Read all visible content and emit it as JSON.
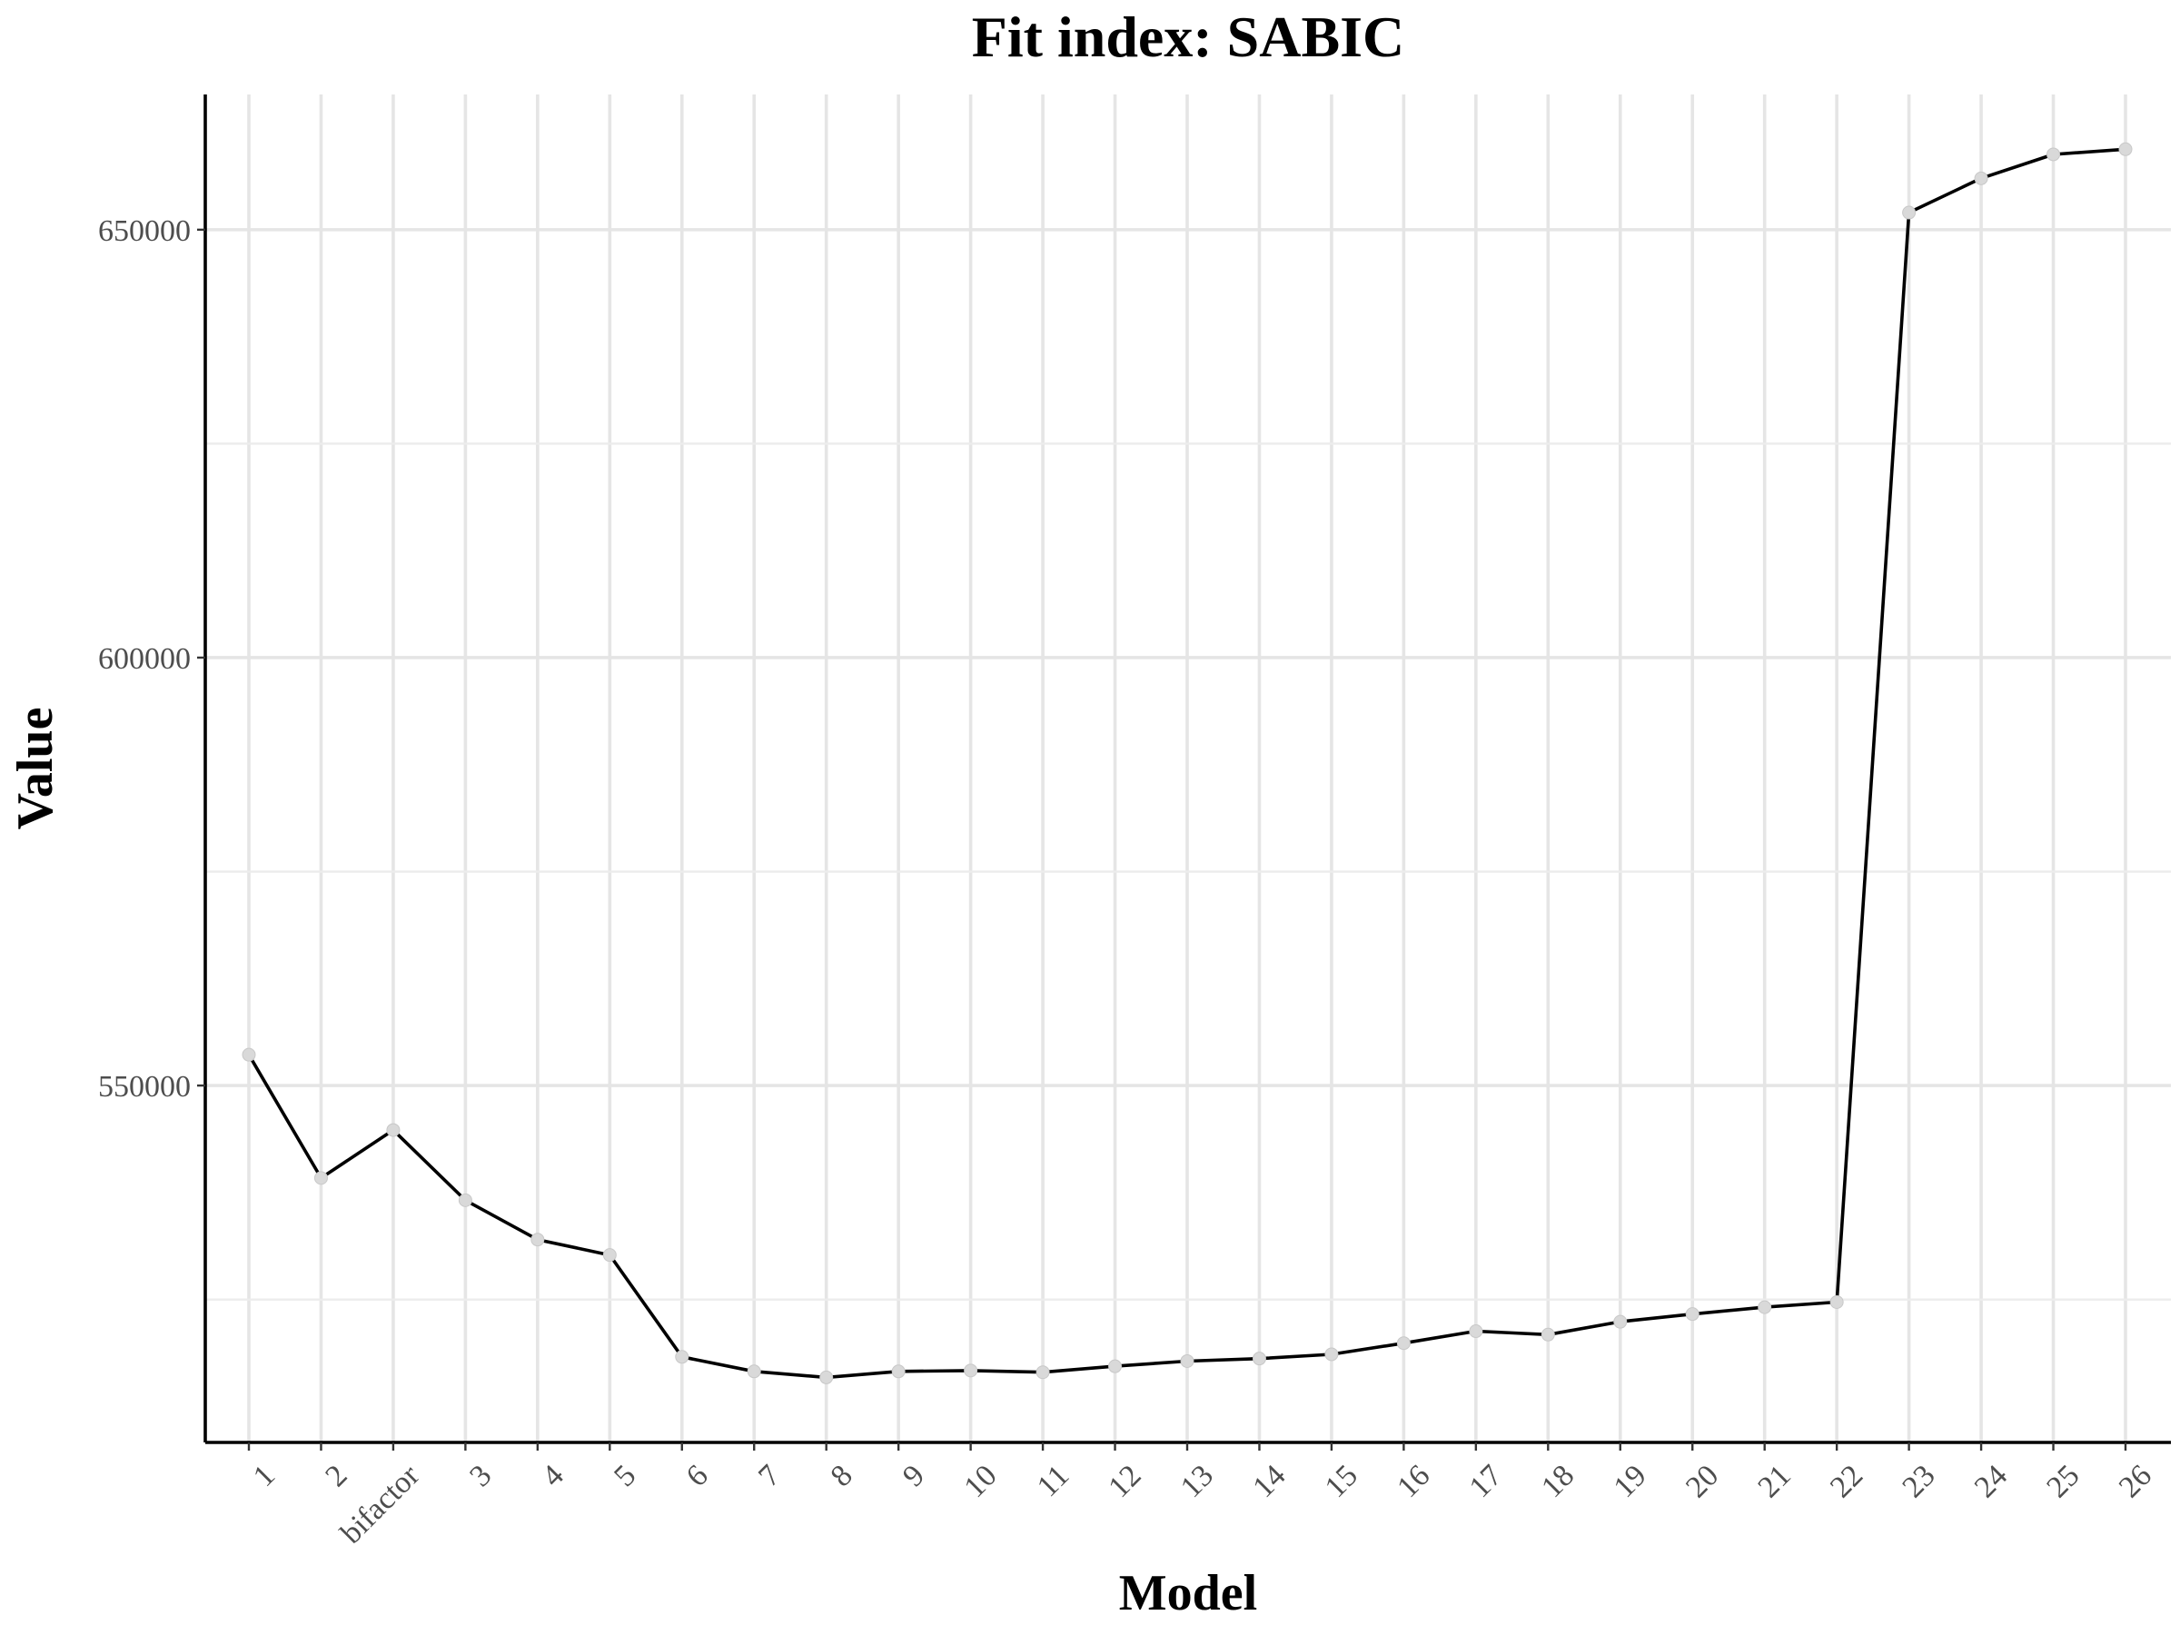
{
  "chart_data": {
    "type": "line",
    "title": "Fit index: SABIC",
    "xlabel": "Model",
    "ylabel": "Value",
    "categories": [
      "1",
      "2",
      "bifactor",
      "3",
      "4",
      "5",
      "6",
      "7",
      "8",
      "9",
      "10",
      "11",
      "12",
      "13",
      "14",
      "15",
      "16",
      "17",
      "18",
      "19",
      "20",
      "21",
      "22",
      "23",
      "24",
      "25",
      "26"
    ],
    "values": [
      553600,
      539200,
      544800,
      536600,
      532000,
      530200,
      518300,
      516600,
      515900,
      516600,
      516700,
      516500,
      517200,
      517800,
      518100,
      518600,
      519900,
      521300,
      520900,
      522400,
      523300,
      524100,
      524700,
      652000,
      656000,
      658800,
      659400
    ],
    "ylim": [
      508300,
      665800
    ],
    "yticks": [
      550000,
      600000,
      650000
    ],
    "ytick_labels": [
      "550000",
      "600000",
      "650000"
    ],
    "grid": true,
    "line_color": "#000000",
    "point_color": "#d9d9d9"
  }
}
